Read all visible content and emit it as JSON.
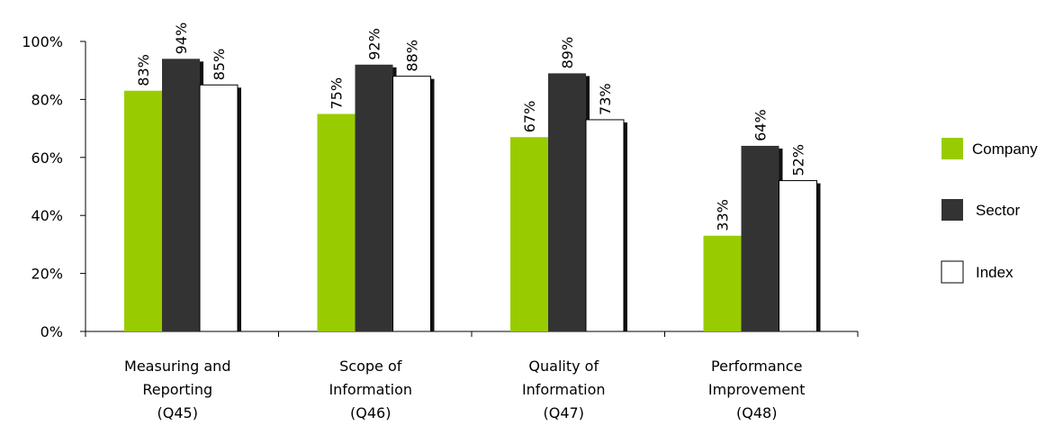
{
  "chart_data": {
    "type": "bar",
    "categories": [
      [
        "Measuring and",
        "Reporting",
        "(Q45)"
      ],
      [
        "Scope of",
        "Information",
        "(Q46)"
      ],
      [
        "Quality of",
        "Information",
        "(Q47)"
      ],
      [
        "Performance",
        "Improvement",
        "(Q48)"
      ]
    ],
    "series": [
      {
        "name": "Company",
        "values": [
          83,
          75,
          67,
          33
        ],
        "labels": [
          "83%",
          "75%",
          "67%",
          "33%"
        ],
        "color": "#99cc00"
      },
      {
        "name": "Sector",
        "values": [
          94,
          92,
          89,
          64
        ],
        "labels": [
          "94%",
          "92%",
          "89%",
          "64%"
        ],
        "color": "#333333"
      },
      {
        "name": "Index",
        "values": [
          85,
          88,
          73,
          52
        ],
        "labels": [
          "85%",
          "88%",
          "73%",
          "52%"
        ],
        "color": "#ffffff"
      }
    ],
    "ylim": [
      0,
      100
    ],
    "yticks": [
      0,
      20,
      40,
      60,
      80,
      100
    ],
    "yticklabels": [
      "0%",
      "20%",
      "40%",
      "60%",
      "80%",
      "100%"
    ],
    "title": "",
    "xlabel": "",
    "ylabel": "",
    "grid": false,
    "legend_position": "right"
  }
}
